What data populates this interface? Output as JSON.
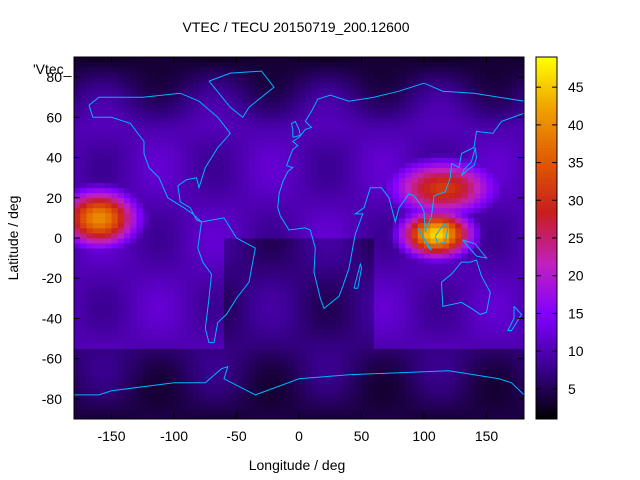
{
  "chart_data": {
    "type": "heatmap",
    "title": "VTEC / TECU 20150719_200.12600",
    "xlabel": "Longitude / deg",
    "ylabel": "Latitude / deg",
    "series_label": "'Vtec_",
    "xlim": [
      -180,
      180
    ],
    "ylim": [
      -90,
      90
    ],
    "xticks": [
      -150,
      -100,
      -50,
      0,
      50,
      100,
      150
    ],
    "yticks": [
      -80,
      -60,
      -40,
      -20,
      0,
      20,
      40,
      60,
      80
    ],
    "colorbar": {
      "range": [
        1,
        49
      ],
      "ticks": [
        5,
        10,
        15,
        20,
        25,
        30,
        35,
        40,
        45
      ]
    },
    "grid_step_deg": {
      "lon": 5,
      "lat": 2.5
    },
    "features": [
      {
        "name": "pacific-hotspot",
        "lon": -160,
        "lat": 10,
        "value": 38,
        "sigma_lon": 22,
        "sigma_lat": 10
      },
      {
        "name": "asia-hotspot",
        "lon": 110,
        "lat": 2,
        "value": 44,
        "sigma_lon": 20,
        "sigma_lat": 8
      },
      {
        "name": "asia-north-band",
        "lon": 115,
        "lat": 25,
        "value": 30,
        "sigma_lon": 30,
        "sigma_lat": 10
      }
    ],
    "background_value": 10,
    "polar_value": 4,
    "coastline_color": "#00b4ff",
    "colormap": [
      "#000000",
      "#3a0090",
      "#8000ff",
      "#c020c0",
      "#c81e1e",
      "#e05a00",
      "#f0a000",
      "#ffff00"
    ]
  }
}
